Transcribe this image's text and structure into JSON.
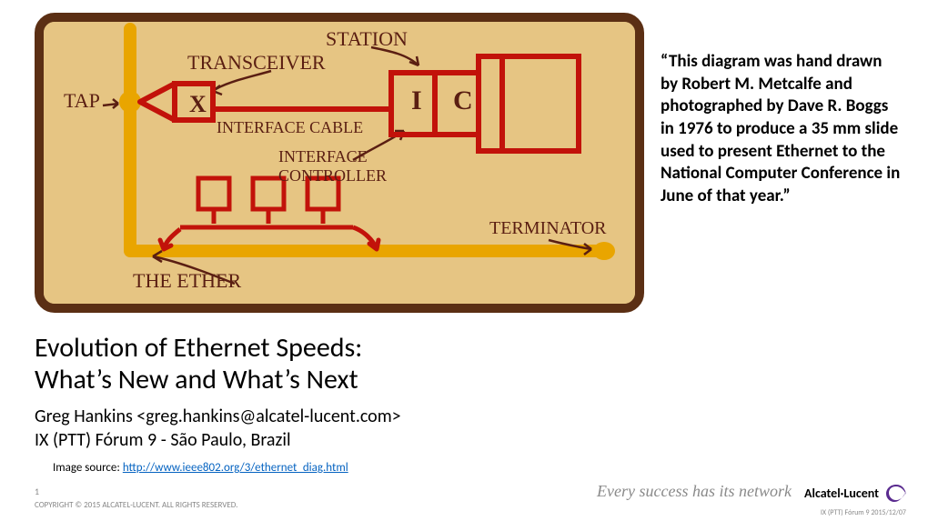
{
  "diagram": {
    "frame_border_color": "#5b2f14",
    "background_color": "#e6c583",
    "ether_color": "#e9a500",
    "device_color": "#c2120a",
    "label_color": "#5a1e12",
    "label_fontsize": 22,
    "labels": {
      "station": "STATION",
      "transceiver": "TRANSCEIVER",
      "tap": "TAP",
      "interface_cable": "INTERFACE CABLE",
      "interface_controller": "INTERFACE\nCONTROLLER",
      "terminator": "TERMINATOR",
      "the_ether": "THE ETHER",
      "x": "X",
      "i": "I",
      "c": "C"
    }
  },
  "quote": "“This diagram was hand drawn by Robert M. Metcalfe and photographed by Dave R. Boggs in 1976 to produce a 35 mm slide used to present Ethernet to the National Computer Conference in June of that year.”",
  "title": {
    "line1": "Evolution of Ethernet Speeds:",
    "line2": "What’s New and What’s Next"
  },
  "author": {
    "line1": "Greg Hankins <greg.hankins@alcatel-lucent.com>",
    "line2": "IX (PTT) Fórum 9 - São Paulo, Brazil"
  },
  "source": {
    "prefix": "Image source: ",
    "url": "http://www.ieee802.org/3/ethernet_diag.html"
  },
  "footer": {
    "page": "1",
    "copyright": "COPYRIGHT © 2015 ALCATEL-LUCENT. ALL RIGHTS RESERVED."
  },
  "tagline": {
    "text": "Every success has its network",
    "color": "#8a8a8a"
  },
  "logo": {
    "text": "Alcatel·Lucent",
    "swirl_color": "#5a2b8f"
  },
  "event": "IX (PTT) Fórum 9 2015/12/07",
  "colors": {
    "link": "#0563c1"
  }
}
